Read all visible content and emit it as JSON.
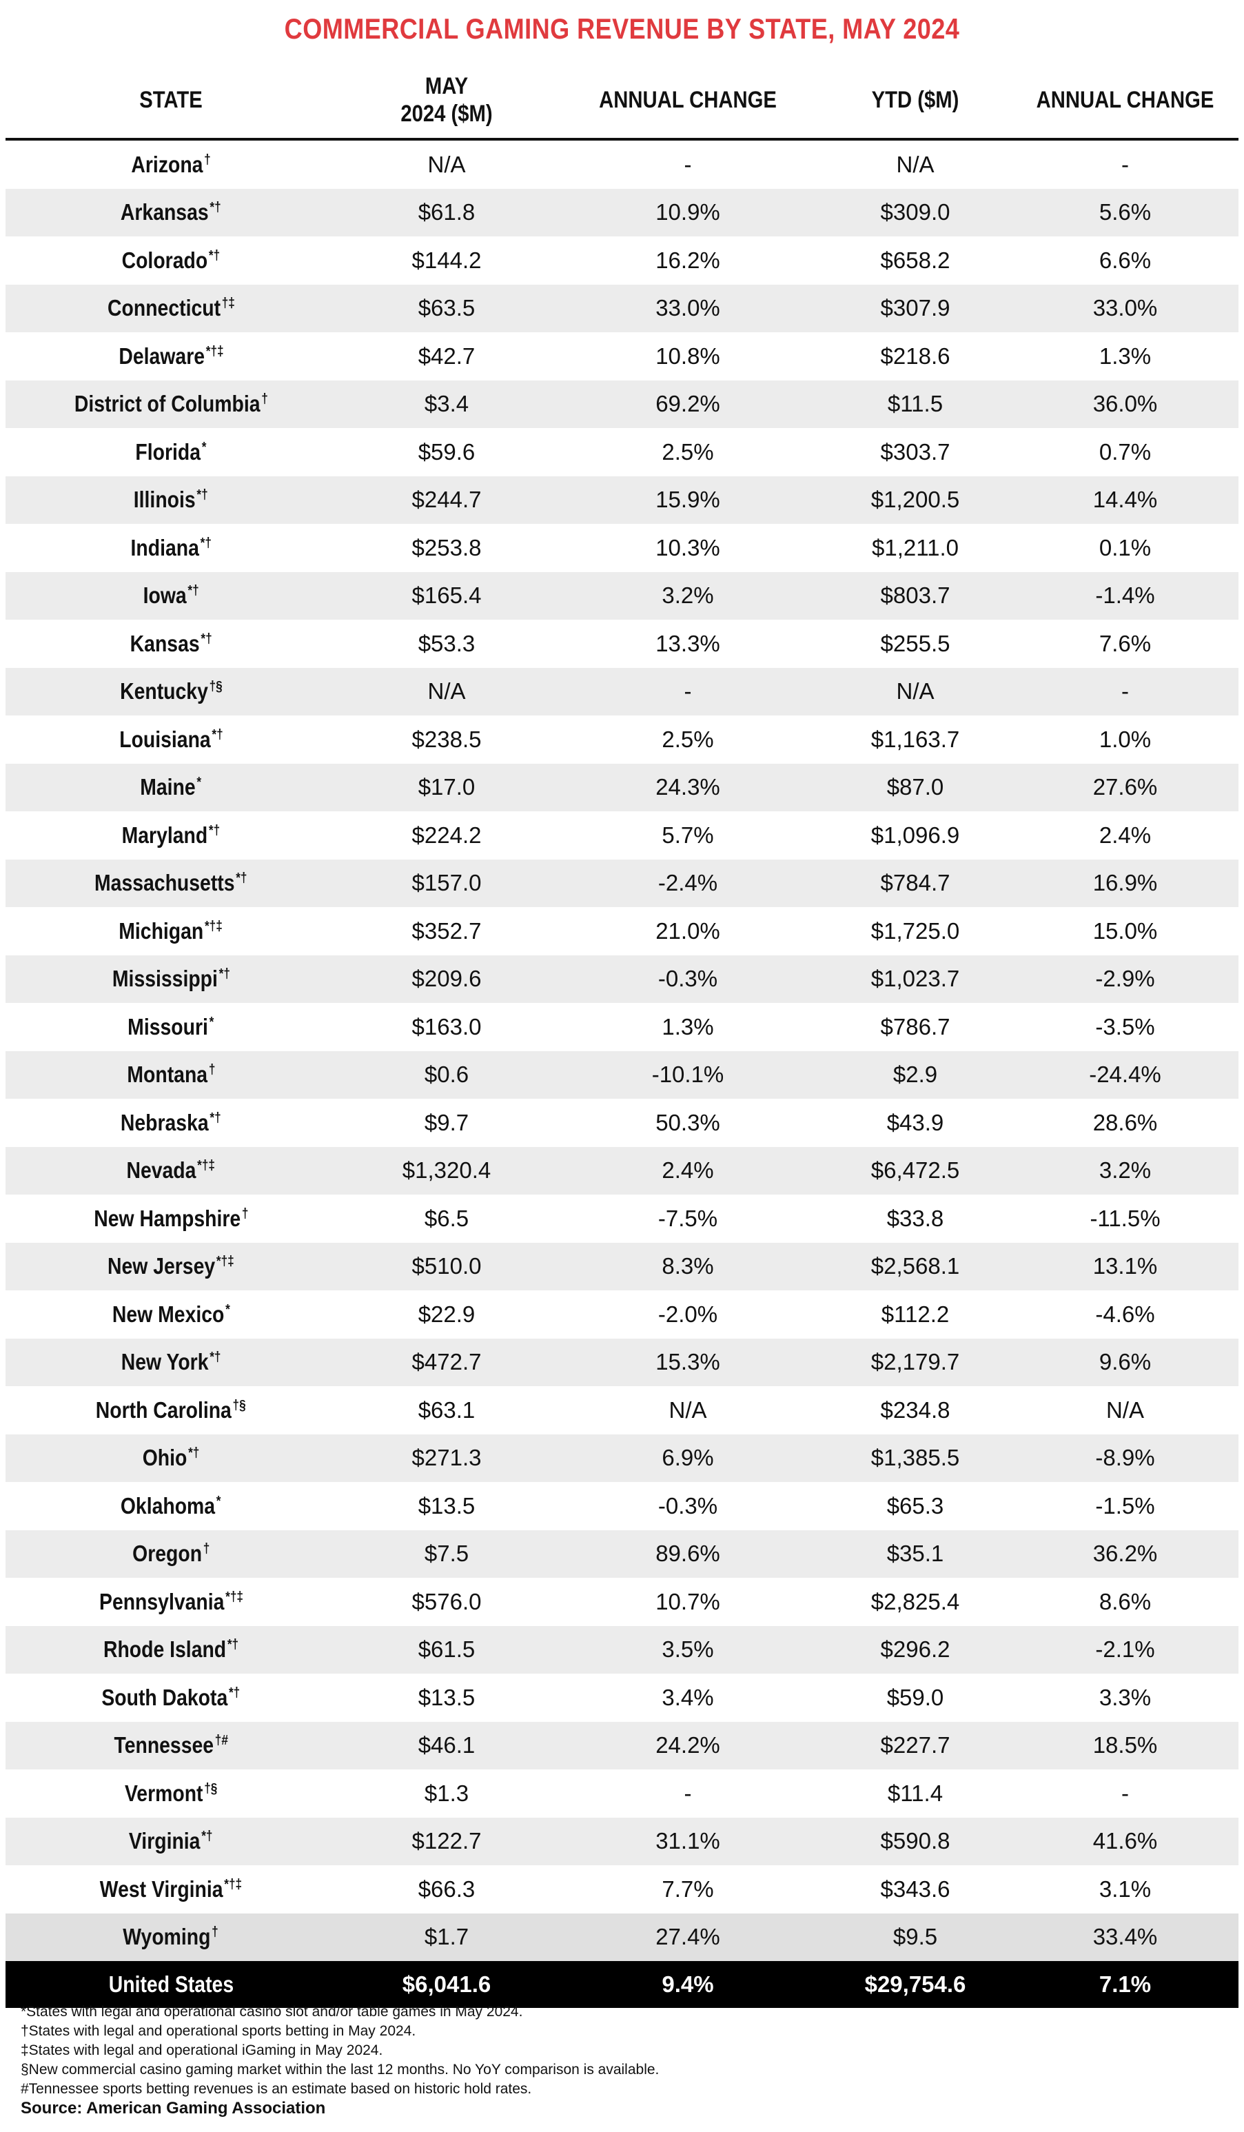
{
  "chart_data": {
    "type": "table",
    "title": "COMMERCIAL GAMING REVENUE BY STATE, MAY 2024",
    "columns": [
      "STATE",
      "MAY 2024 ($M)",
      "ANNUAL CHANGE",
      "YTD ($M)",
      "ANNUAL CHANGE"
    ],
    "rows": [
      {
        "state": "Arizona",
        "marks": "†",
        "may": "N/A",
        "chg": "-",
        "ytd": "N/A",
        "ytd_chg": "-"
      },
      {
        "state": "Arkansas",
        "marks": "*†",
        "may": "$61.8",
        "chg": "10.9%",
        "ytd": "$309.0",
        "ytd_chg": "5.6%"
      },
      {
        "state": "Colorado",
        "marks": "*†",
        "may": "$144.2",
        "chg": "16.2%",
        "ytd": "$658.2",
        "ytd_chg": "6.6%"
      },
      {
        "state": "Connecticut",
        "marks": "†‡",
        "may": "$63.5",
        "chg": "33.0%",
        "ytd": "$307.9",
        "ytd_chg": "33.0%"
      },
      {
        "state": "Delaware",
        "marks": "*†‡",
        "may": "$42.7",
        "chg": "10.8%",
        "ytd": "$218.6",
        "ytd_chg": "1.3%"
      },
      {
        "state": "District of Columbia",
        "marks": "†",
        "may": "$3.4",
        "chg": "69.2%",
        "ytd": "$11.5",
        "ytd_chg": "36.0%"
      },
      {
        "state": "Florida",
        "marks": "*",
        "may": "$59.6",
        "chg": "2.5%",
        "ytd": "$303.7",
        "ytd_chg": "0.7%"
      },
      {
        "state": "Illinois",
        "marks": "*†",
        "may": "$244.7",
        "chg": "15.9%",
        "ytd": "$1,200.5",
        "ytd_chg": "14.4%"
      },
      {
        "state": "Indiana",
        "marks": "*†",
        "may": "$253.8",
        "chg": "10.3%",
        "ytd": "$1,211.0",
        "ytd_chg": "0.1%"
      },
      {
        "state": "Iowa",
        "marks": "*†",
        "may": "$165.4",
        "chg": "3.2%",
        "ytd": "$803.7",
        "ytd_chg": "-1.4%"
      },
      {
        "state": "Kansas",
        "marks": "*†",
        "may": "$53.3",
        "chg": "13.3%",
        "ytd": "$255.5",
        "ytd_chg": "7.6%"
      },
      {
        "state": "Kentucky",
        "marks": "†§",
        "may": "N/A",
        "chg": "-",
        "ytd": "N/A",
        "ytd_chg": "-"
      },
      {
        "state": "Louisiana",
        "marks": "*†",
        "may": "$238.5",
        "chg": "2.5%",
        "ytd": "$1,163.7",
        "ytd_chg": "1.0%"
      },
      {
        "state": "Maine",
        "marks": "*",
        "may": "$17.0",
        "chg": "24.3%",
        "ytd": "$87.0",
        "ytd_chg": "27.6%"
      },
      {
        "state": "Maryland",
        "marks": "*†",
        "may": "$224.2",
        "chg": "5.7%",
        "ytd": "$1,096.9",
        "ytd_chg": "2.4%"
      },
      {
        "state": "Massachusetts",
        "marks": "*†",
        "may": "$157.0",
        "chg": "-2.4%",
        "ytd": "$784.7",
        "ytd_chg": "16.9%"
      },
      {
        "state": "Michigan",
        "marks": "*†‡",
        "may": "$352.7",
        "chg": "21.0%",
        "ytd": "$1,725.0",
        "ytd_chg": "15.0%"
      },
      {
        "state": "Mississippi",
        "marks": "*†",
        "may": "$209.6",
        "chg": "-0.3%",
        "ytd": "$1,023.7",
        "ytd_chg": "-2.9%"
      },
      {
        "state": "Missouri",
        "marks": "*",
        "may": "$163.0",
        "chg": "1.3%",
        "ytd": "$786.7",
        "ytd_chg": "-3.5%"
      },
      {
        "state": "Montana",
        "marks": "†",
        "may": "$0.6",
        "chg": "-10.1%",
        "ytd": "$2.9",
        "ytd_chg": "-24.4%"
      },
      {
        "state": "Nebraska",
        "marks": "*†",
        "may": "$9.7",
        "chg": "50.3%",
        "ytd": "$43.9",
        "ytd_chg": "28.6%"
      },
      {
        "state": "Nevada",
        "marks": "*†‡",
        "may": "$1,320.4",
        "chg": "2.4%",
        "ytd": "$6,472.5",
        "ytd_chg": "3.2%"
      },
      {
        "state": "New Hampshire",
        "marks": "†",
        "may": "$6.5",
        "chg": "-7.5%",
        "ytd": "$33.8",
        "ytd_chg": "-11.5%"
      },
      {
        "state": "New Jersey",
        "marks": "*†‡",
        "may": "$510.0",
        "chg": "8.3%",
        "ytd": "$2,568.1",
        "ytd_chg": "13.1%"
      },
      {
        "state": "New Mexico",
        "marks": "*",
        "may": "$22.9",
        "chg": "-2.0%",
        "ytd": "$112.2",
        "ytd_chg": "-4.6%"
      },
      {
        "state": "New York",
        "marks": "*†",
        "may": "$472.7",
        "chg": "15.3%",
        "ytd": "$2,179.7",
        "ytd_chg": "9.6%"
      },
      {
        "state": "North Carolina",
        "marks": "†§",
        "may": "$63.1",
        "chg": "N/A",
        "ytd": "$234.8",
        "ytd_chg": "N/A"
      },
      {
        "state": "Ohio",
        "marks": "*†",
        "may": "$271.3",
        "chg": "6.9%",
        "ytd": "$1,385.5",
        "ytd_chg": "-8.9%"
      },
      {
        "state": "Oklahoma",
        "marks": "*",
        "may": "$13.5",
        "chg": "-0.3%",
        "ytd": "$65.3",
        "ytd_chg": "-1.5%"
      },
      {
        "state": "Oregon",
        "marks": "†",
        "may": "$7.5",
        "chg": "89.6%",
        "ytd": "$35.1",
        "ytd_chg": "36.2%"
      },
      {
        "state": "Pennsylvania",
        "marks": "*†‡",
        "may": "$576.0",
        "chg": "10.7%",
        "ytd": "$2,825.4",
        "ytd_chg": "8.6%"
      },
      {
        "state": "Rhode Island",
        "marks": "*†",
        "may": "$61.5",
        "chg": "3.5%",
        "ytd": "$296.2",
        "ytd_chg": "-2.1%"
      },
      {
        "state": "South Dakota",
        "marks": "*†",
        "may": "$13.5",
        "chg": "3.4%",
        "ytd": "$59.0",
        "ytd_chg": "3.3%"
      },
      {
        "state": "Tennessee",
        "marks": "†#",
        "may": "$46.1",
        "chg": "24.2%",
        "ytd": "$227.7",
        "ytd_chg": "18.5%"
      },
      {
        "state": "Vermont",
        "marks": "†§",
        "may": "$1.3",
        "chg": "-",
        "ytd": "$11.4",
        "ytd_chg": "-"
      },
      {
        "state": "Virginia",
        "marks": "*†",
        "may": "$122.7",
        "chg": "31.1%",
        "ytd": "$590.8",
        "ytd_chg": "41.6%"
      },
      {
        "state": "West Virginia",
        "marks": "*†‡",
        "may": "$66.3",
        "chg": "7.7%",
        "ytd": "$343.6",
        "ytd_chg": "3.1%"
      },
      {
        "state": "Wyoming",
        "marks": "†",
        "may": "$1.7",
        "chg": "27.4%",
        "ytd": "$9.5",
        "ytd_chg": "33.4%"
      }
    ],
    "total": {
      "state": "United States",
      "may": "$6,041.6",
      "chg": "9.4%",
      "ytd": "$29,754.6",
      "ytd_chg": "7.1%"
    }
  },
  "header": {
    "state": "STATE",
    "may_line1": "MAY",
    "may_line2": "2024 ($M)",
    "annual_change": "ANNUAL CHANGE",
    "ytd": "YTD ($M)",
    "annual_change_2": "ANNUAL CHANGE"
  },
  "notes": [
    "*States with legal and operational casino slot and/or table games in May 2024.",
    "†States with legal and operational sports betting in May 2024.",
    "‡States with legal and operational iGaming in May 2024.",
    "§New commercial casino gaming market within the last 12 months. No YoY comparison is available.",
    "#Tennessee sports betting revenues is an estimate based on historic hold rates."
  ],
  "source": "Source: American Gaming Association",
  "colors": {
    "title": "#e03a3e",
    "stripe": "#ececec",
    "total_bg": "#000000"
  }
}
